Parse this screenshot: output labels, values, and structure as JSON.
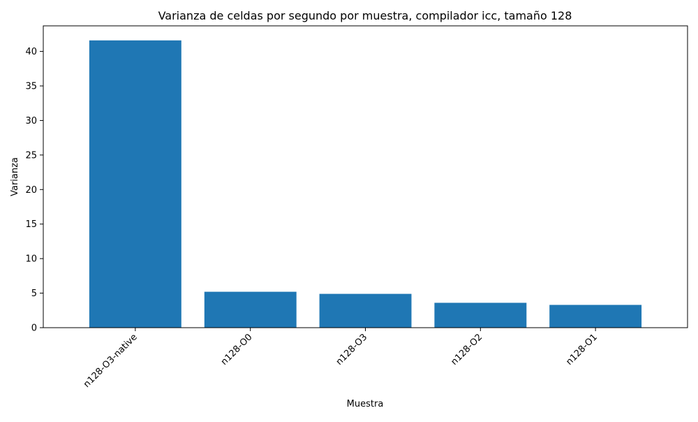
{
  "chart_data": {
    "type": "bar",
    "title": "Varianza de celdas por segundo por muestra, compilador icc, tamaño 128",
    "xlabel": "Muestra",
    "ylabel": "Varianza",
    "categories": [
      "n128-O3-native",
      "n128-O0",
      "n128-O3",
      "n128-O2",
      "n128-O1"
    ],
    "values": [
      41.6,
      5.2,
      4.9,
      3.6,
      3.3
    ],
    "ylim": [
      0,
      43.7
    ],
    "yticks": [
      0,
      5,
      10,
      15,
      20,
      25,
      30,
      35,
      40
    ],
    "bar_color": "#1f77b4",
    "grid": false,
    "legend": "none"
  }
}
